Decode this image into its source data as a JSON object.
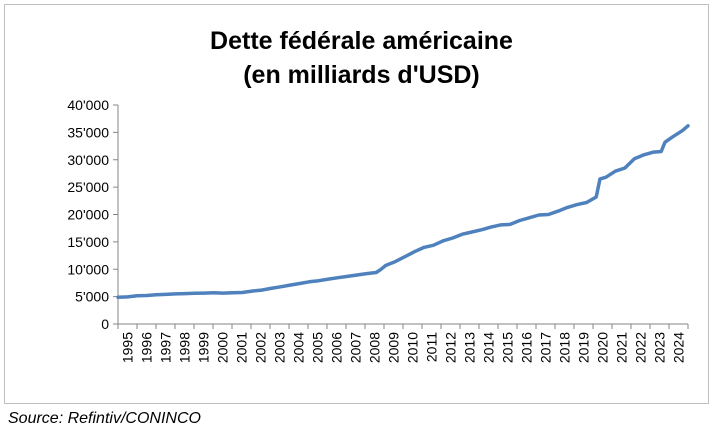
{
  "chart_data": {
    "type": "line",
    "title": "Dette fédérale américaine",
    "subtitle": "(en milliards d'USD)",
    "xlabel": "",
    "ylabel": "",
    "xlim": [
      1995,
      2024.8
    ],
    "ylim": [
      0,
      40000
    ],
    "y_ticks": [
      0,
      5000,
      10000,
      15000,
      20000,
      25000,
      30000,
      35000,
      40000
    ],
    "y_tick_labels": [
      "0",
      "5'000",
      "10'000",
      "15'000",
      "20'000",
      "25'000",
      "30'000",
      "35'000",
      "40'000"
    ],
    "x_tick_labels": [
      "1995",
      "1996",
      "1997",
      "1998",
      "1999",
      "2000",
      "2001",
      "2002",
      "2003",
      "2004",
      "2005",
      "2006",
      "2007",
      "2008",
      "2009",
      "2010",
      "2011",
      "2012",
      "2013",
      "2014",
      "2015",
      "2016",
      "2017",
      "2018",
      "2019",
      "2020",
      "2021",
      "2022",
      "2023",
      "2024"
    ],
    "grid": false,
    "legend": "none",
    "series_color": "#4f81bd",
    "series": [
      {
        "name": "",
        "x": [
          1995.0,
          1995.5,
          1996.0,
          1996.5,
          1997.0,
          1997.5,
          1998.0,
          1998.5,
          1999.0,
          1999.5,
          2000.0,
          2000.5,
          2001.0,
          2001.5,
          2002.0,
          2002.5,
          2003.0,
          2003.5,
          2004.0,
          2004.5,
          2005.0,
          2005.5,
          2006.0,
          2006.5,
          2007.0,
          2007.5,
          2008.0,
          2008.5,
          2008.75,
          2009.0,
          2009.5,
          2010.0,
          2010.5,
          2011.0,
          2011.5,
          2012.0,
          2012.5,
          2013.0,
          2013.5,
          2014.0,
          2014.5,
          2015.0,
          2015.5,
          2016.0,
          2016.5,
          2017.0,
          2017.5,
          2018.0,
          2018.5,
          2019.0,
          2019.5,
          2020.0,
          2020.2,
          2020.5,
          2021.0,
          2021.5,
          2022.0,
          2022.5,
          2023.0,
          2023.4,
          2023.6,
          2024.0,
          2024.5,
          2024.8
        ],
        "values": [
          4900,
          4950,
          5150,
          5200,
          5350,
          5400,
          5500,
          5550,
          5600,
          5650,
          5700,
          5650,
          5700,
          5750,
          6000,
          6200,
          6500,
          6800,
          7100,
          7400,
          7700,
          7900,
          8200,
          8450,
          8700,
          8950,
          9200,
          9400,
          10000,
          10700,
          11400,
          12300,
          13200,
          14000,
          14400,
          15200,
          15700,
          16400,
          16800,
          17200,
          17700,
          18100,
          18200,
          18900,
          19400,
          19900,
          20000,
          20600,
          21300,
          21800,
          22200,
          23200,
          26500,
          26800,
          27900,
          28500,
          30200,
          30900,
          31400,
          31500,
          33200,
          34200,
          35300,
          36200
        ]
      }
    ]
  },
  "source_text": "Source: Refintiv/CONINCO"
}
